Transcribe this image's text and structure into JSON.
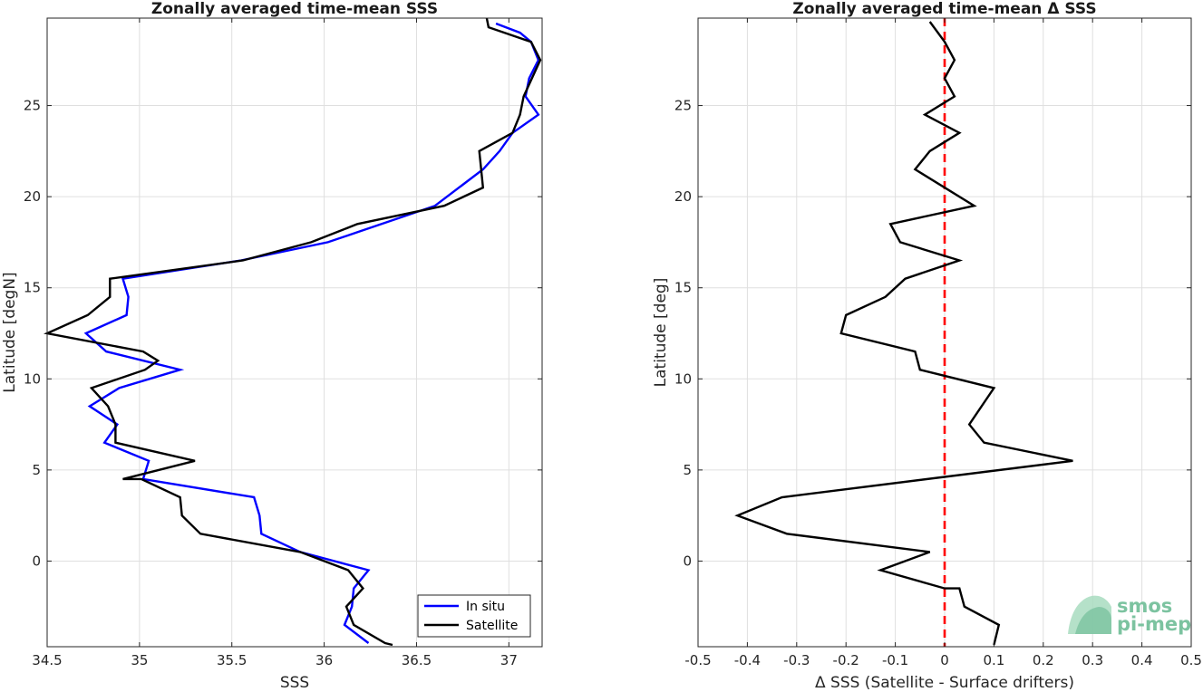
{
  "chart_data": [
    {
      "type": "line",
      "title": "Zonally averaged time-mean SSS",
      "xlabel": "SSS",
      "ylabel": "Latitude [degN]",
      "xlim": [
        34.5,
        37.18
      ],
      "ylim": [
        -4.7,
        29.8
      ],
      "xticks": [
        34.5,
        35,
        35.5,
        36,
        36.5,
        37
      ],
      "xtick_labels": [
        "34.5",
        "35",
        "35.5",
        "36",
        "36.5",
        "37"
      ],
      "yticks": [
        0,
        5,
        10,
        15,
        20,
        25
      ],
      "ytick_labels": [
        "0",
        "5",
        "10",
        "15",
        "20",
        "25"
      ],
      "grid": true,
      "legend_position": "bottom-right",
      "series": [
        {
          "name": "In situ",
          "color": "#0000ff",
          "x": [
            36.24,
            36.11,
            36.15,
            36.16,
            36.24,
            35.87,
            35.66,
            35.65,
            35.62,
            35.02,
            35.05,
            34.81,
            34.88,
            34.73,
            34.89,
            35.22,
            34.82,
            34.71,
            34.93,
            34.94,
            34.91,
            35.55,
            36.02,
            36.6,
            36.73,
            36.86,
            36.95,
            37.02,
            37.16,
            37.09,
            37.11,
            37.16,
            37.12,
            37.06,
            36.93
          ],
          "y": [
            -4.5,
            -3.5,
            -2.5,
            -1.5,
            -0.5,
            0.5,
            1.5,
            2.5,
            3.5,
            4.5,
            5.5,
            6.5,
            7.5,
            8.5,
            9.5,
            10.5,
            11.5,
            12.5,
            13.5,
            14.5,
            15.5,
            16.5,
            17.5,
            19.5,
            20.5,
            21.5,
            22.5,
            23.5,
            24.5,
            25.5,
            26.5,
            27.5,
            28.5,
            29.0,
            29.5
          ]
        },
        {
          "name": "Satellite",
          "color": "#000000",
          "x": [
            36.37,
            36.33,
            36.16,
            36.12,
            36.21,
            36.13,
            35.87,
            35.33,
            35.23,
            35.22,
            35.01,
            34.91,
            35.3,
            34.87,
            34.87,
            34.83,
            34.74,
            35.03,
            35.1,
            35.02,
            34.5,
            34.72,
            34.84,
            34.84,
            35.56,
            35.93,
            36.18,
            36.65,
            36.86,
            36.84,
            37.02,
            37.06,
            37.08,
            37.17,
            37.12,
            36.89,
            36.88
          ],
          "y": [
            -4.6,
            -4.5,
            -3.5,
            -2.5,
            -1.5,
            -0.5,
            0.5,
            1.5,
            2.5,
            3.5,
            4.5,
            4.5,
            5.5,
            6.5,
            7.5,
            8.5,
            9.5,
            10.5,
            11.0,
            11.5,
            12.5,
            13.5,
            14.5,
            15.5,
            16.5,
            17.5,
            18.5,
            19.5,
            20.5,
            22.5,
            23.5,
            24.5,
            25.5,
            27.5,
            28.5,
            29.3,
            29.8
          ]
        }
      ]
    },
    {
      "type": "line",
      "title": "Zonally averaged time-mean Δ SSS",
      "xlabel": "Δ SSS (Satellite - Surface drifters)",
      "ylabel": "Latitude [deg]",
      "xlim": [
        -0.5,
        0.5
      ],
      "ylim": [
        -4.7,
        29.8
      ],
      "xticks": [
        -0.5,
        -0.4,
        -0.3,
        -0.2,
        -0.1,
        0,
        0.1,
        0.2,
        0.3,
        0.4,
        0.5
      ],
      "xtick_labels": [
        "-0.5",
        "-0.4",
        "-0.3",
        "-0.2",
        "-0.1",
        "0",
        "0.1",
        "0.2",
        "0.3",
        "0.4",
        "0.5"
      ],
      "yticks": [
        0,
        5,
        10,
        15,
        20,
        25
      ],
      "ytick_labels": [
        "0",
        "5",
        "10",
        "15",
        "20",
        "25"
      ],
      "grid": true,
      "reference_line": {
        "x": 0,
        "color": "#ff0000",
        "style": "dashed"
      },
      "series": [
        {
          "color": "#000000",
          "x": [
            0.1,
            0.11,
            0.04,
            0.03,
            0.0,
            -0.13,
            -0.03,
            -0.32,
            -0.42,
            -0.33,
            0.26,
            0.08,
            0.05,
            0.1,
            -0.05,
            -0.06,
            -0.21,
            -0.2,
            -0.12,
            -0.08,
            0.03,
            -0.09,
            -0.11,
            0.06,
            -0.06,
            -0.03,
            0.03,
            -0.04,
            0.02,
            0.0,
            0.02,
            0.0,
            -0.03
          ],
          "y": [
            -4.6,
            -3.5,
            -2.5,
            -1.5,
            -1.5,
            -0.5,
            0.5,
            1.5,
            2.5,
            3.5,
            5.5,
            6.5,
            7.5,
            9.5,
            10.5,
            11.5,
            12.5,
            13.5,
            14.5,
            15.5,
            16.5,
            17.5,
            18.5,
            19.5,
            21.5,
            22.5,
            23.5,
            24.5,
            25.5,
            26.5,
            27.5,
            28.5,
            29.6
          ]
        }
      ]
    }
  ],
  "logo": {
    "line1": "smos",
    "line2": "pi-mep",
    "color": "#7cc3a0"
  }
}
